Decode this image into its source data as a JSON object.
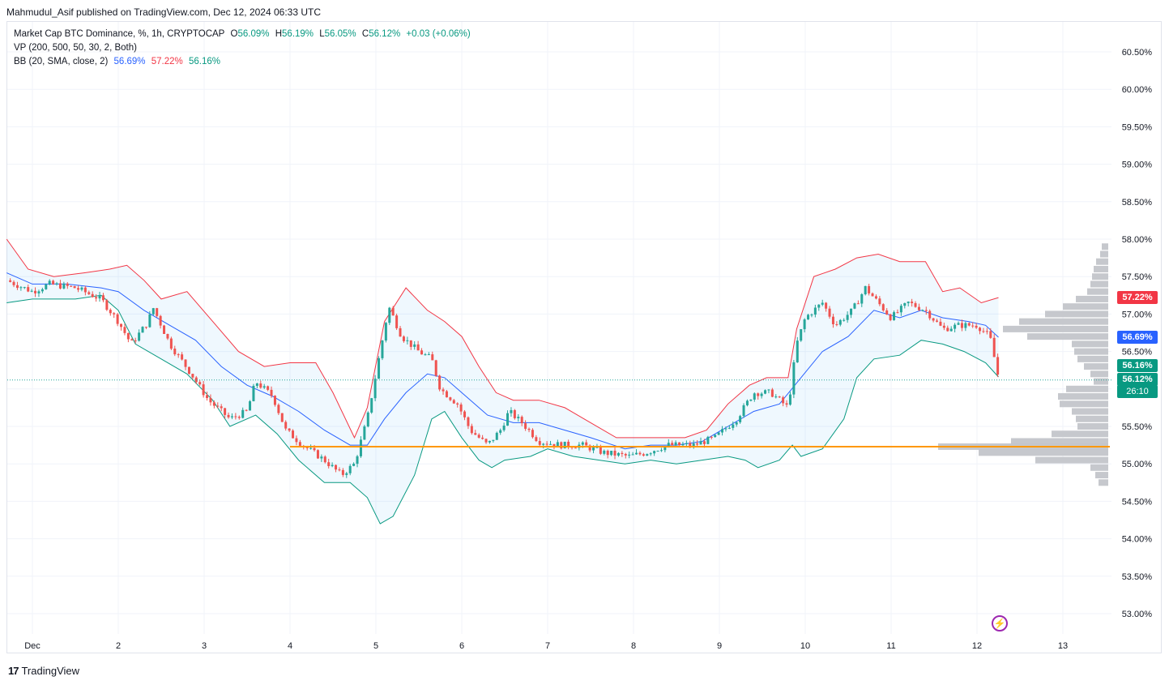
{
  "header": {
    "published_by": "Mahmudul_Asif published on TradingView.com, Dec 12, 2024 06:33 UTC"
  },
  "legend": {
    "symbol": "Market Cap BTC Dominance, %, 1h, CRYPTOCAP",
    "open_label": "O",
    "open": "56.09%",
    "high_label": "H",
    "high": "56.19%",
    "low_label": "L",
    "low": "56.05%",
    "close_label": "C",
    "close": "56.12%",
    "change": "+0.03 (+0.06%)",
    "vp": "VP (200, 500, 50, 30, 2, Both)",
    "bb_label": "BB (20, SMA, close, 2)",
    "bb_basis": "56.69%",
    "bb_upper": "57.22%",
    "bb_lower": "56.16%"
  },
  "price_tags": {
    "upper": "57.22%",
    "basis": "56.69%",
    "lower": "56.16%",
    "last": "56.12%",
    "countdown": "26:10"
  },
  "footer": {
    "brand": "TradingView",
    "logo": "17"
  },
  "colors": {
    "up": "#26a69a",
    "down": "#ef5350",
    "bb_upper": "#f23645",
    "bb_basis": "#2962ff",
    "bb_lower": "#089981",
    "bb_fill": "#2196f3",
    "support": "#ff9800",
    "volume_profile": "#c3c5ca"
  },
  "chart_data": {
    "type": "candlestick",
    "title": "Market Cap BTC Dominance, %, 1h, CRYPTOCAP",
    "ylim": [
      52.75,
      60.75
    ],
    "y_ticks": [
      "60.50%",
      "60.00%",
      "59.50%",
      "59.00%",
      "58.50%",
      "58.00%",
      "57.50%",
      "57.00%",
      "56.50%",
      "56.00%",
      "55.50%",
      "55.00%",
      "54.50%",
      "54.00%",
      "53.50%",
      "53.00%"
    ],
    "y_tick_values": [
      60.5,
      60.0,
      59.5,
      59.0,
      58.5,
      58.0,
      57.5,
      57.0,
      56.5,
      56.0,
      55.5,
      55.0,
      54.5,
      54.0,
      53.5,
      53.0
    ],
    "x_ticks": [
      "Dec",
      "2",
      "3",
      "4",
      "5",
      "6",
      "7",
      "8",
      "9",
      "10",
      "11",
      "12",
      "13"
    ],
    "x_tick_days": [
      1,
      2,
      3,
      4,
      5,
      6,
      7,
      8,
      9,
      10,
      11,
      12,
      13
    ],
    "x_range_days": [
      0.7,
      13.5
    ],
    "support_level": 55.23,
    "last_price": 56.12,
    "price_path": [
      [
        0.7,
        57.45
      ],
      [
        1.0,
        57.3
      ],
      [
        1.2,
        57.4
      ],
      [
        1.5,
        57.35
      ],
      [
        1.8,
        57.2
      ],
      [
        2.0,
        56.9
      ],
      [
        2.15,
        56.6
      ],
      [
        2.35,
        56.9
      ],
      [
        2.4,
        57.1
      ],
      [
        2.6,
        56.6
      ],
      [
        2.85,
        56.2
      ],
      [
        3.05,
        55.85
      ],
      [
        3.3,
        55.6
      ],
      [
        3.5,
        55.7
      ],
      [
        3.6,
        56.1
      ],
      [
        3.8,
        55.9
      ],
      [
        3.95,
        55.45
      ],
      [
        4.15,
        55.25
      ],
      [
        4.4,
        55.05
      ],
      [
        4.6,
        54.85
      ],
      [
        4.75,
        55.0
      ],
      [
        4.9,
        55.6
      ],
      [
        5.05,
        56.5
      ],
      [
        5.15,
        57.1
      ],
      [
        5.3,
        56.7
      ],
      [
        5.5,
        56.5
      ],
      [
        5.65,
        56.4
      ],
      [
        5.75,
        56.0
      ],
      [
        5.95,
        55.8
      ],
      [
        6.1,
        55.45
      ],
      [
        6.3,
        55.25
      ],
      [
        6.45,
        55.45
      ],
      [
        6.55,
        55.7
      ],
      [
        6.7,
        55.55
      ],
      [
        6.9,
        55.3
      ],
      [
        7.15,
        55.25
      ],
      [
        7.4,
        55.25
      ],
      [
        7.65,
        55.15
      ],
      [
        7.95,
        55.1
      ],
      [
        8.15,
        55.15
      ],
      [
        8.4,
        55.25
      ],
      [
        8.7,
        55.25
      ],
      [
        8.95,
        55.35
      ],
      [
        9.2,
        55.6
      ],
      [
        9.4,
        55.95
      ],
      [
        9.6,
        55.95
      ],
      [
        9.8,
        55.75
      ],
      [
        9.9,
        56.6
      ],
      [
        10.0,
        56.95
      ],
      [
        10.2,
        57.15
      ],
      [
        10.35,
        56.85
      ],
      [
        10.55,
        57.05
      ],
      [
        10.7,
        57.35
      ],
      [
        10.85,
        57.15
      ],
      [
        11.0,
        56.95
      ],
      [
        11.2,
        57.15
      ],
      [
        11.4,
        57.05
      ],
      [
        11.6,
        56.8
      ],
      [
        11.8,
        56.85
      ],
      [
        12.0,
        56.85
      ],
      [
        12.15,
        56.7
      ],
      [
        12.25,
        56.15
      ],
      [
        12.28,
        56.12
      ]
    ],
    "bollinger_upper": [
      [
        0.7,
        58.0
      ],
      [
        0.95,
        57.6
      ],
      [
        1.25,
        57.5
      ],
      [
        1.6,
        57.55
      ],
      [
        1.9,
        57.6
      ],
      [
        2.1,
        57.65
      ],
      [
        2.3,
        57.45
      ],
      [
        2.5,
        57.2
      ],
      [
        2.8,
        57.3
      ],
      [
        3.1,
        56.9
      ],
      [
        3.4,
        56.5
      ],
      [
        3.7,
        56.3
      ],
      [
        4.0,
        56.35
      ],
      [
        4.3,
        56.35
      ],
      [
        4.5,
        55.95
      ],
      [
        4.75,
        55.35
      ],
      [
        4.9,
        55.75
      ],
      [
        5.1,
        56.9
      ],
      [
        5.35,
        57.35
      ],
      [
        5.6,
        57.05
      ],
      [
        5.8,
        56.9
      ],
      [
        6.0,
        56.7
      ],
      [
        6.2,
        56.3
      ],
      [
        6.4,
        55.95
      ],
      [
        6.6,
        55.85
      ],
      [
        6.9,
        55.85
      ],
      [
        7.2,
        55.75
      ],
      [
        7.5,
        55.55
      ],
      [
        7.8,
        55.35
      ],
      [
        8.0,
        55.35
      ],
      [
        8.3,
        55.35
      ],
      [
        8.6,
        55.35
      ],
      [
        8.85,
        55.45
      ],
      [
        9.1,
        55.8
      ],
      [
        9.35,
        56.05
      ],
      [
        9.55,
        56.15
      ],
      [
        9.8,
        56.15
      ],
      [
        9.9,
        56.8
      ],
      [
        10.1,
        57.5
      ],
      [
        10.35,
        57.6
      ],
      [
        10.6,
        57.75
      ],
      [
        10.85,
        57.8
      ],
      [
        11.1,
        57.7
      ],
      [
        11.4,
        57.7
      ],
      [
        11.6,
        57.3
      ],
      [
        11.8,
        57.35
      ],
      [
        12.05,
        57.15
      ],
      [
        12.25,
        57.22
      ]
    ],
    "bollinger_basis": [
      [
        0.7,
        57.55
      ],
      [
        1.0,
        57.4
      ],
      [
        1.4,
        57.4
      ],
      [
        1.8,
        57.35
      ],
      [
        2.0,
        57.3
      ],
      [
        2.3,
        57.05
      ],
      [
        2.6,
        56.85
      ],
      [
        2.9,
        56.65
      ],
      [
        3.2,
        56.3
      ],
      [
        3.5,
        56.05
      ],
      [
        3.8,
        55.9
      ],
      [
        4.1,
        55.7
      ],
      [
        4.4,
        55.45
      ],
      [
        4.7,
        55.25
      ],
      [
        4.9,
        55.25
      ],
      [
        5.1,
        55.6
      ],
      [
        5.35,
        55.95
      ],
      [
        5.6,
        56.2
      ],
      [
        5.8,
        56.15
      ],
      [
        6.0,
        55.95
      ],
      [
        6.3,
        55.65
      ],
      [
        6.6,
        55.55
      ],
      [
        6.9,
        55.55
      ],
      [
        7.2,
        55.45
      ],
      [
        7.5,
        55.35
      ],
      [
        7.9,
        55.2
      ],
      [
        8.2,
        55.25
      ],
      [
        8.5,
        55.25
      ],
      [
        8.8,
        55.3
      ],
      [
        9.1,
        55.5
      ],
      [
        9.4,
        55.7
      ],
      [
        9.7,
        55.8
      ],
      [
        9.95,
        56.15
      ],
      [
        10.2,
        56.5
      ],
      [
        10.5,
        56.7
      ],
      [
        10.8,
        57.05
      ],
      [
        11.1,
        56.95
      ],
      [
        11.35,
        57.05
      ],
      [
        11.6,
        56.95
      ],
      [
        11.9,
        56.9
      ],
      [
        12.1,
        56.85
      ],
      [
        12.25,
        56.69
      ]
    ],
    "bollinger_lower": [
      [
        0.7,
        57.15
      ],
      [
        1.0,
        57.2
      ],
      [
        1.5,
        57.2
      ],
      [
        1.8,
        57.25
      ],
      [
        2.0,
        57.05
      ],
      [
        2.2,
        56.6
      ],
      [
        2.5,
        56.4
      ],
      [
        2.8,
        56.2
      ],
      [
        3.1,
        55.85
      ],
      [
        3.3,
        55.5
      ],
      [
        3.6,
        55.65
      ],
      [
        3.85,
        55.4
      ],
      [
        4.1,
        55.05
      ],
      [
        4.4,
        54.75
      ],
      [
        4.7,
        54.75
      ],
      [
        4.9,
        54.55
      ],
      [
        5.05,
        54.2
      ],
      [
        5.2,
        54.3
      ],
      [
        5.45,
        54.85
      ],
      [
        5.65,
        55.6
      ],
      [
        5.8,
        55.7
      ],
      [
        6.0,
        55.35
      ],
      [
        6.2,
        55.05
      ],
      [
        6.35,
        54.95
      ],
      [
        6.5,
        55.05
      ],
      [
        6.8,
        55.1
      ],
      [
        7.0,
        55.2
      ],
      [
        7.3,
        55.1
      ],
      [
        7.6,
        55.05
      ],
      [
        7.9,
        55.0
      ],
      [
        8.2,
        55.05
      ],
      [
        8.5,
        55.0
      ],
      [
        8.8,
        55.05
      ],
      [
        9.1,
        55.1
      ],
      [
        9.3,
        55.05
      ],
      [
        9.45,
        54.95
      ],
      [
        9.7,
        55.05
      ],
      [
        9.85,
        55.25
      ],
      [
        9.95,
        55.1
      ],
      [
        10.2,
        55.2
      ],
      [
        10.45,
        55.6
      ],
      [
        10.6,
        56.15
      ],
      [
        10.8,
        56.4
      ],
      [
        11.1,
        56.45
      ],
      [
        11.35,
        56.65
      ],
      [
        11.6,
        56.6
      ],
      [
        11.85,
        56.5
      ],
      [
        12.1,
        56.35
      ],
      [
        12.25,
        56.16
      ]
    ],
    "volume_profile": [
      [
        57.9,
        8
      ],
      [
        57.8,
        10
      ],
      [
        57.7,
        15
      ],
      [
        57.6,
        18
      ],
      [
        57.5,
        20
      ],
      [
        57.4,
        22
      ],
      [
        57.3,
        26
      ],
      [
        57.2,
        40
      ],
      [
        57.1,
        56
      ],
      [
        57.0,
        78
      ],
      [
        56.9,
        110
      ],
      [
        56.8,
        130
      ],
      [
        56.7,
        100
      ],
      [
        56.6,
        45
      ],
      [
        56.5,
        42
      ],
      [
        56.4,
        38
      ],
      [
        56.3,
        30
      ],
      [
        56.2,
        22
      ],
      [
        56.1,
        18
      ],
      [
        56.0,
        52
      ],
      [
        55.9,
        62
      ],
      [
        55.8,
        60
      ],
      [
        55.7,
        45
      ],
      [
        55.6,
        40
      ],
      [
        55.5,
        38
      ],
      [
        55.4,
        70
      ],
      [
        55.3,
        120
      ],
      [
        55.23,
        210
      ],
      [
        55.15,
        160
      ],
      [
        55.05,
        90
      ],
      [
        54.95,
        22
      ],
      [
        54.85,
        16
      ],
      [
        54.75,
        12
      ]
    ]
  }
}
